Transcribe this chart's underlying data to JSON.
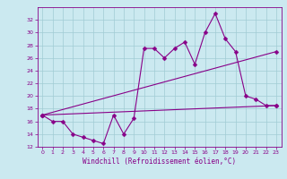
{
  "xlabel": "Windchill (Refroidissement éolien,°C)",
  "background_color": "#cbe9f0",
  "grid_color": "#a0ccd4",
  "line_color": "#880088",
  "x_values": [
    0,
    1,
    2,
    3,
    4,
    5,
    6,
    7,
    8,
    9,
    10,
    11,
    12,
    13,
    14,
    15,
    16,
    17,
    18,
    19,
    20,
    21,
    22,
    23
  ],
  "series1": [
    17.0,
    16.0,
    16.0,
    14.0,
    13.5,
    13.0,
    12.5,
    17.0,
    14.0,
    16.5,
    27.5,
    27.5,
    26.0,
    27.5,
    28.5,
    25.0,
    30.0,
    33.0,
    29.0,
    27.0,
    20.0,
    19.5,
    18.5,
    18.5
  ],
  "line2_x": [
    0,
    23
  ],
  "line2_y": [
    17.0,
    27.0
  ],
  "line3_x": [
    0,
    23
  ],
  "line3_y": [
    17.0,
    18.5
  ],
  "ylim": [
    12,
    34
  ],
  "yticks": [
    12,
    14,
    16,
    18,
    20,
    22,
    24,
    26,
    28,
    30,
    32
  ],
  "xlim_min": -0.5,
  "xlim_max": 23.5,
  "xticks": [
    0,
    1,
    2,
    3,
    4,
    5,
    6,
    7,
    8,
    9,
    10,
    11,
    12,
    13,
    14,
    15,
    16,
    17,
    18,
    19,
    20,
    21,
    22,
    23
  ],
  "tick_fontsize": 4.5,
  "xlabel_fontsize": 5.5,
  "linewidth": 0.8,
  "markersize": 2.5
}
